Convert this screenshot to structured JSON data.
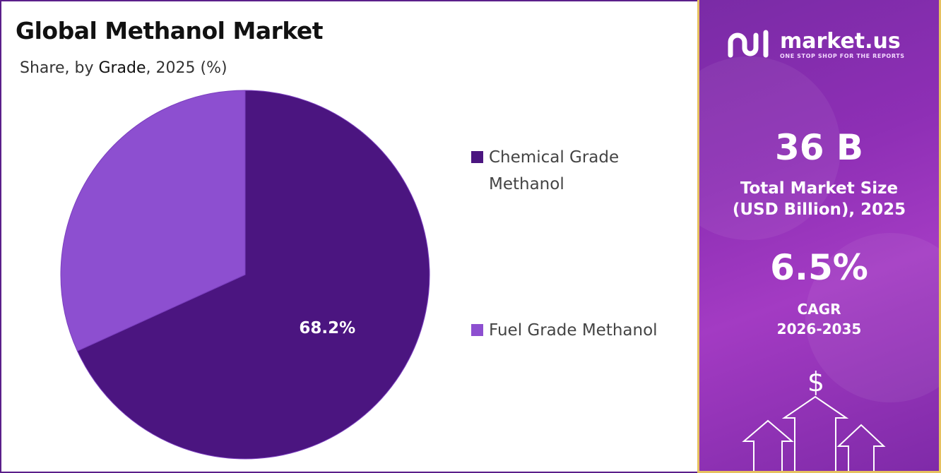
{
  "title": "Global Methanol Market",
  "subtitle": {
    "prefix": "Share, by ",
    "dimension": "Grade",
    "suffix": ", 2025 (%)"
  },
  "chart_data": {
    "type": "pie",
    "title": "Global Methanol Market",
    "subtitle": "Share, by Grade, 2025 (%)",
    "slices": [
      {
        "name": "Chemical Grade Methanol",
        "value": 68.2,
        "label": "68.2%",
        "color": "#4b1580"
      },
      {
        "name": "Fuel Grade Methanol",
        "value": 31.8,
        "label": "",
        "color": "#8d4fd0"
      }
    ],
    "legend_position": "right"
  },
  "legend": [
    {
      "label": "Chemical Grade Methanol",
      "color": "#4b1580"
    },
    {
      "label": "Fuel Grade Methanol",
      "color": "#8d4fd0"
    }
  ],
  "sidebar": {
    "brand": "market.us",
    "tagline": "ONE STOP SHOP FOR THE REPORTS",
    "market_size_value": "36 B",
    "market_size_label_1": "Total Market Size",
    "market_size_label_2": "(USD Billion), 2025",
    "cagr_value": "6.5%",
    "cagr_label": "CAGR",
    "cagr_period": "2026-2035",
    "currency_symbol": "$",
    "accent_border": "#e7c160"
  },
  "icons": [
    "market-us-logo-icon",
    "dollar-icon",
    "up-arrow-icon"
  ]
}
